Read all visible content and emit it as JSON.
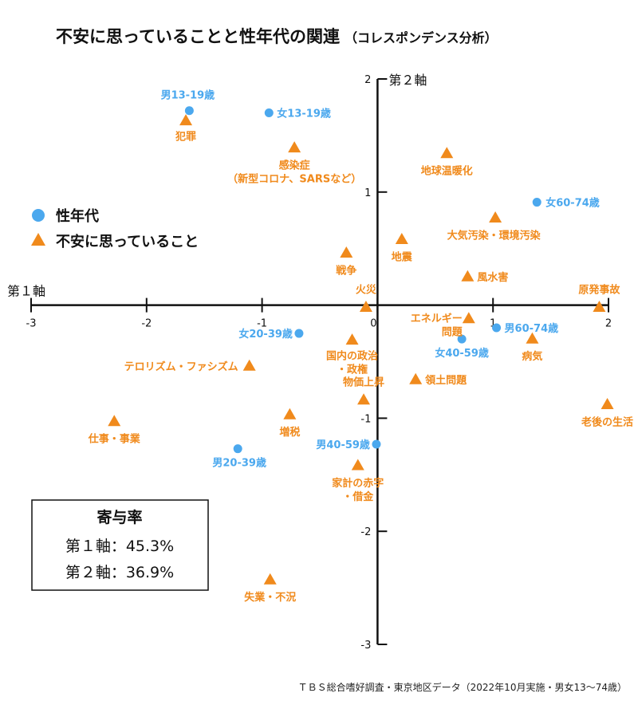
{
  "chart_data": {
    "type": "scatter",
    "title": "不安に思っていることと性年代の関連",
    "subtitle": "（コレスポンデンス分析）",
    "xlabel": "第１軸",
    "ylabel": "第２軸",
    "xlim": [
      -3,
      2
    ],
    "ylim": [
      -3,
      2
    ],
    "x_ticks": [
      "-3",
      "-2",
      "-1",
      "0",
      "1",
      "2"
    ],
    "y_ticks": [
      "2",
      "1",
      "-1",
      "-2",
      "-3"
    ],
    "legend": [
      {
        "label": "性年代",
        "marker": "circle",
        "color": "#4ba8ee"
      },
      {
        "label": "不安に思っていること",
        "marker": "triangle",
        "color": "#f08a1c"
      }
    ],
    "legend_position": "left",
    "series": [
      {
        "name": "性年代",
        "marker": "circle",
        "color": "#4ba8ee",
        "points": [
          {
            "label": "男13-19歳",
            "x": -1.63,
            "y": 1.72
          },
          {
            "label": "女13-19歳",
            "x": -0.94,
            "y": 1.7
          },
          {
            "label": "女60-74歳",
            "x": 1.38,
            "y": 0.91
          },
          {
            "label": "女20-39歳",
            "x": -0.68,
            "y": -0.25
          },
          {
            "label": "男60-74歳",
            "x": 1.03,
            "y": -0.2
          },
          {
            "label": "女40-59歳",
            "x": 0.73,
            "y": -0.3
          },
          {
            "label": "男40-59歳",
            "x": -0.01,
            "y": -1.23
          },
          {
            "label": "男20-39歳",
            "x": -1.21,
            "y": -1.27
          }
        ]
      },
      {
        "name": "不安に思っていること",
        "marker": "triangle",
        "color": "#f08a1c",
        "points": [
          {
            "label": "犯罪",
            "x": -1.66,
            "y": 1.63
          },
          {
            "label": "感染症\n（新型コロナ、SARSなど）",
            "x": -0.72,
            "y": 1.39
          },
          {
            "label": "地球温暖化",
            "x": 0.6,
            "y": 1.34
          },
          {
            "label": "大気汚染・環境汚染",
            "x": 1.02,
            "y": 0.77
          },
          {
            "label": "戦争",
            "x": -0.27,
            "y": 0.46
          },
          {
            "label": "地震",
            "x": 0.21,
            "y": 0.58
          },
          {
            "label": "風水害",
            "x": 0.78,
            "y": 0.25
          },
          {
            "label": "火災",
            "x": -0.1,
            "y": -0.02
          },
          {
            "label": "原発事故",
            "x": 1.92,
            "y": -0.02
          },
          {
            "label": "エネルギー\n問題",
            "x": 0.79,
            "y": -0.12
          },
          {
            "label": "病気",
            "x": 1.34,
            "y": -0.3
          },
          {
            "label": "国内の政治\n・政権",
            "x": -0.22,
            "y": -0.31
          },
          {
            "label": "テロリズム・ファシズム",
            "x": -1.11,
            "y": -0.54
          },
          {
            "label": "領土問題",
            "x": 0.33,
            "y": -0.66
          },
          {
            "label": "物価上昇",
            "x": -0.12,
            "y": -0.84
          },
          {
            "label": "老後の生活",
            "x": 1.99,
            "y": -0.88
          },
          {
            "label": "仕事・事業",
            "x": -2.28,
            "y": -1.03
          },
          {
            "label": "増税",
            "x": -0.76,
            "y": -0.97
          },
          {
            "label": "家計の赤字\n・借金",
            "x": -0.17,
            "y": -1.42
          },
          {
            "label": "失業・不況",
            "x": -0.93,
            "y": -2.43
          }
        ]
      }
    ]
  },
  "contribution": {
    "title": "寄与率",
    "lines": [
      "第１軸：45.3%",
      "第２軸：36.9%"
    ]
  },
  "source": "ＴＢＳ総合嗜好調査・東京地区データ（2022年10月実施・男女13～74歳）"
}
